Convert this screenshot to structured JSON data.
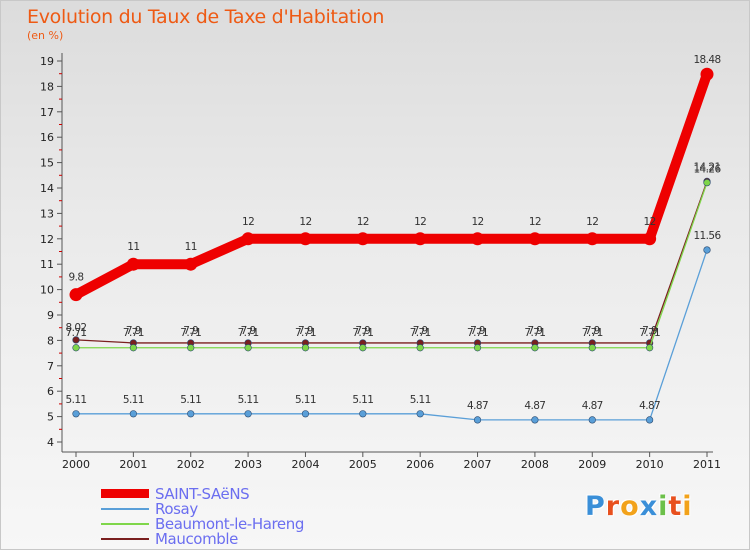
{
  "chart_data": {
    "type": "line",
    "title": "Evolution du Taux de Taxe d'Habitation",
    "subtitle": "(en %)",
    "categories": [
      "2000",
      "2001",
      "2002",
      "2003",
      "2004",
      "2005",
      "2006",
      "2007",
      "2008",
      "2009",
      "2010",
      "2011"
    ],
    "ylim": [
      4,
      19
    ],
    "yticks": [
      "4",
      "5",
      "6",
      "7",
      "8",
      "9",
      "10",
      "11",
      "12",
      "13",
      "14",
      "15",
      "16",
      "17",
      "18",
      "19"
    ],
    "series": [
      {
        "name": "SAINT-SAëNS",
        "color": "#ee0000",
        "values": [
          9.8,
          11,
          11,
          12,
          12,
          12,
          12,
          12,
          12,
          12,
          12,
          18.48
        ],
        "labels": [
          "9.8",
          "11",
          "11",
          "12",
          "12",
          "12",
          "12",
          "12",
          "12",
          "12",
          "12",
          "18.48"
        ]
      },
      {
        "name": "Rosay",
        "color": "#5a9fd8",
        "values": [
          5.11,
          5.11,
          5.11,
          5.11,
          5.11,
          5.11,
          5.11,
          4.87,
          4.87,
          4.87,
          4.87,
          11.56
        ],
        "labels": [
          "5.11",
          "5.11",
          "5.11",
          "5.11",
          "5.11",
          "5.11",
          "5.11",
          "4.87",
          "4.87",
          "4.87",
          "4.87",
          "11.56"
        ]
      },
      {
        "name": "Beaumont-le-Hareng",
        "color": "#7fd64a",
        "values": [
          7.71,
          7.71,
          7.71,
          7.71,
          7.71,
          7.71,
          7.71,
          7.71,
          7.71,
          7.71,
          7.71,
          14.21
        ],
        "labels": [
          "7.71",
          "7.71",
          "7.71",
          "7.71",
          "7.71",
          "7.71",
          "7.71",
          "7.71",
          "7.71",
          "7.71",
          "7.71",
          "14.21"
        ]
      },
      {
        "name": "Maucomble",
        "color": "#7a1f1f",
        "values": [
          8.02,
          7.9,
          7.9,
          7.9,
          7.9,
          7.9,
          7.9,
          7.9,
          7.9,
          7.9,
          7.9,
          14.26
        ],
        "labels": [
          "8.02",
          "7.9",
          "7.9",
          "7.9",
          "7.9",
          "7.9",
          "7.9",
          "7.9",
          "7.9",
          "7.9",
          "7.9",
          "14.26"
        ]
      }
    ]
  },
  "logo": {
    "text": "Proxiti",
    "colors": [
      "#3a8fd8",
      "#e8501e",
      "#f2a21a",
      "#3a8fd8",
      "#6cc04a",
      "#e8501e",
      "#f2a21a"
    ]
  }
}
